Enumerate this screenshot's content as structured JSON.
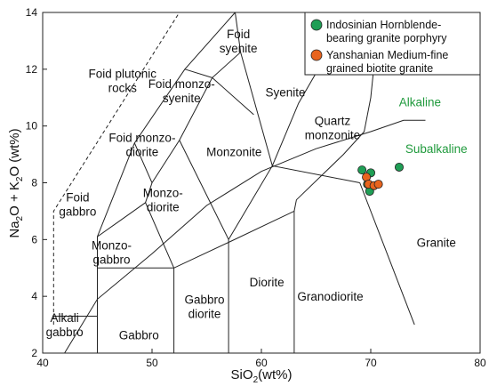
{
  "chart_data": {
    "type": "scatter",
    "xlabel": "SiO",
    "xlabel_sub": "2",
    "xlabel_tail": "(wt%)",
    "ylabel_parts": [
      "Na",
      "2",
      "O + K",
      "2",
      "O (wt%)"
    ],
    "xlim": [
      40,
      80
    ],
    "ylim": [
      2,
      14
    ],
    "x_ticks": [
      40,
      50,
      60,
      70,
      80
    ],
    "y_ticks": [
      2,
      4,
      6,
      8,
      10,
      12,
      14
    ],
    "grid": false,
    "legend_position": "top-right",
    "fields": [
      {
        "name": "foid-syenite",
        "lines": [
          "Foid",
          "syenite"
        ],
        "x": 57.9,
        "y": 13.0
      },
      {
        "name": "foid-plutonic-rocks",
        "lines": [
          "Foid plutonic",
          "rocks"
        ],
        "x": 47.3,
        "y": 11.6
      },
      {
        "name": "foid-monzosyenite",
        "lines": [
          "Foid monzo-",
          "syenite"
        ],
        "x": 52.7,
        "y": 11.25
      },
      {
        "name": "syenite",
        "lines": [
          "Syenite"
        ],
        "x": 62.2,
        "y": 11.2
      },
      {
        "name": "quartz-monzonite",
        "lines": [
          "Quartz",
          "monzonite"
        ],
        "x": 66.5,
        "y": 9.95
      },
      {
        "name": "foid-monzodiorite",
        "lines": [
          "Foid monzo-",
          "diorite"
        ],
        "x": 49.1,
        "y": 9.35
      },
      {
        "name": "monzonite",
        "lines": [
          "Monzonite"
        ],
        "x": 57.5,
        "y": 9.1
      },
      {
        "name": "foid-gabbro",
        "lines": [
          "Foid",
          "gabbro"
        ],
        "x": 43.2,
        "y": 7.25
      },
      {
        "name": "monzodiorite",
        "lines": [
          "Monzo-",
          "diorite"
        ],
        "x": 51.0,
        "y": 7.4
      },
      {
        "name": "monzogabbro",
        "lines": [
          "Monzo-",
          "gabbro"
        ],
        "x": 46.3,
        "y": 5.55
      },
      {
        "name": "granite",
        "lines": [
          "Granite"
        ],
        "x": 76.0,
        "y": 5.9
      },
      {
        "name": "diorite",
        "lines": [
          "Diorite"
        ],
        "x": 60.5,
        "y": 4.5
      },
      {
        "name": "granodiorite",
        "lines": [
          "Granodiorite"
        ],
        "x": 66.3,
        "y": 4.0
      },
      {
        "name": "gabbro-diorite",
        "lines": [
          "Gabbro",
          "diorite"
        ],
        "x": 54.8,
        "y": 3.65
      },
      {
        "name": "alkali-gabbro",
        "lines": [
          "Alkali",
          "gabbro"
        ],
        "x": 42.0,
        "y": 3.0
      },
      {
        "name": "gabbro",
        "lines": [
          "Gabbro"
        ],
        "x": 48.8,
        "y": 2.65
      }
    ],
    "series_labels": [
      {
        "name": "alkaline",
        "text": "Alkaline",
        "x": 74.5,
        "y": 10.85
      },
      {
        "name": "subalkaline",
        "text": "Subalkaline",
        "x": 76.0,
        "y": 9.2
      }
    ],
    "boundaries": [
      [
        [
          41,
          3
        ],
        [
          41,
          7
        ],
        [
          52.5,
          14
        ]
      ],
      [
        [
          41,
          3.3
        ],
        [
          45,
          3.3
        ]
      ],
      [
        [
          45,
          2
        ],
        [
          45,
          6.1
        ],
        [
          48.4,
          9.4
        ],
        [
          53,
          12
        ],
        [
          57.6,
          14
        ]
      ],
      [
        [
          45,
          5
        ],
        [
          52,
          5
        ],
        [
          57,
          5.9
        ],
        [
          63,
          7
        ],
        [
          63.2,
          7.4
        ],
        [
          67.5,
          9
        ],
        [
          69.4,
          9.8
        ],
        [
          70,
          11
        ],
        [
          70.4,
          12.5
        ]
      ],
      [
        [
          52,
          2
        ],
        [
          52,
          5
        ]
      ],
      [
        [
          57,
          2
        ],
        [
          57,
          6
        ]
      ],
      [
        [
          63,
          2
        ],
        [
          63,
          7
        ]
      ],
      [
        [
          69,
          8
        ],
        [
          74,
          3
        ]
      ],
      [
        [
          45,
          6.1
        ],
        [
          49.4,
          7.3
        ],
        [
          52,
          5
        ]
      ],
      [
        [
          48.4,
          9.4
        ],
        [
          50,
          8
        ],
        [
          49.4,
          7.3
        ]
      ],
      [
        [
          50,
          8
        ],
        [
          52.5,
          9.5
        ],
        [
          55.5,
          11.7
        ],
        [
          58.1,
          12.6
        ],
        [
          57.6,
          14
        ]
      ],
      [
        [
          52.5,
          9.5
        ],
        [
          57,
          6
        ]
      ],
      [
        [
          55.5,
          11.7
        ],
        [
          59.3,
          10.4
        ]
      ],
      [
        [
          57,
          6
        ],
        [
          61,
          8.6
        ],
        [
          69,
          8
        ]
      ],
      [
        [
          61,
          8.6
        ],
        [
          58.1,
          12.6
        ]
      ],
      [
        [
          53,
          12
        ],
        [
          55.5,
          11.7
        ]
      ],
      [
        [
          61,
          8.6
        ],
        [
          63.4,
          10.8
        ],
        [
          67,
          13.2
        ]
      ]
    ],
    "alkaline_divider": [
      [
        42,
        2
      ],
      [
        45,
        3.9
      ],
      [
        50,
        5.5
      ],
      [
        55,
        7.2
      ],
      [
        60,
        8.4
      ],
      [
        65,
        9.2
      ],
      [
        70,
        9.8
      ],
      [
        73,
        10.2
      ],
      [
        75,
        10.2
      ]
    ],
    "series": [
      {
        "name": "Indosinian Hornblende-bearing granite porphyry",
        "color": "#1f9e55",
        "x": [
          69.2,
          70.0,
          69.7,
          69.9,
          72.6
        ],
        "y": [
          8.45,
          8.35,
          7.95,
          7.7,
          8.55
        ]
      },
      {
        "name": "Yanshanian Medium-fine grained biotite granite",
        "color": "#e8641e",
        "x": [
          69.6,
          69.8,
          70.3,
          70.7
        ],
        "y": [
          8.2,
          7.95,
          7.9,
          7.95
        ]
      }
    ],
    "legend": [
      {
        "lines": [
          "Indosinian Hornblende-",
          "bearing granite porphyry"
        ],
        "color": "#1f9e55"
      },
      {
        "lines": [
          "Yanshanian Medium-fine",
          "grained biotite granite"
        ],
        "color": "#e8641e"
      }
    ]
  }
}
